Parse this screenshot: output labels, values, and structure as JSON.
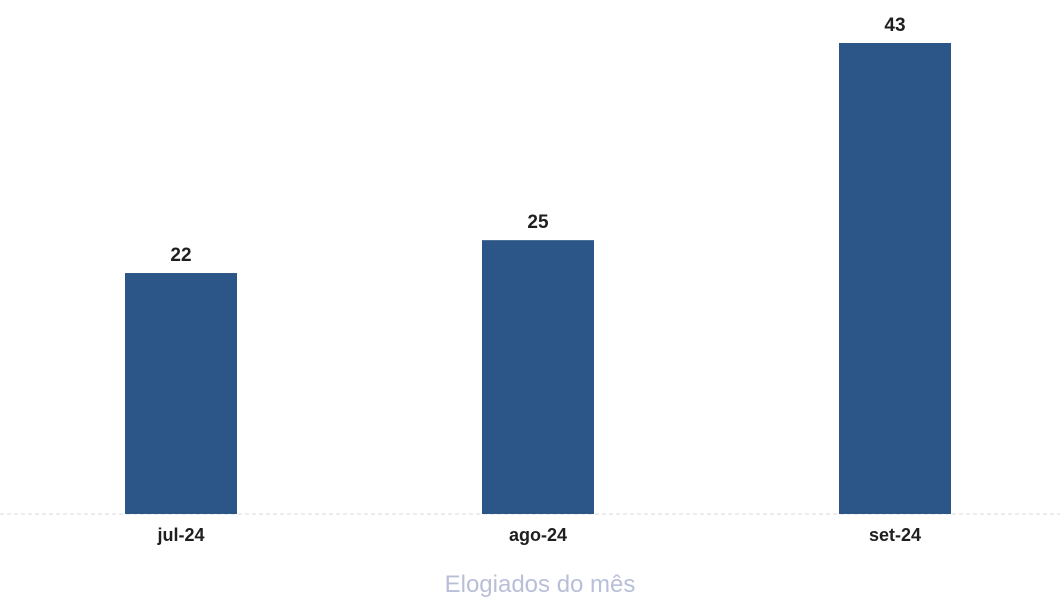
{
  "chart_data": {
    "type": "bar",
    "categories": [
      "jul-24",
      "ago-24",
      "set-24"
    ],
    "series": [
      {
        "name": "Elogiados do mês",
        "values": [
          22,
          25,
          43
        ],
        "color": "#2c5688"
      }
    ],
    "ylim": [
      0,
      43
    ],
    "grid": false,
    "data_labels": true,
    "legend": "bottom",
    "title": "",
    "xlabel": "",
    "ylabel": ""
  }
}
